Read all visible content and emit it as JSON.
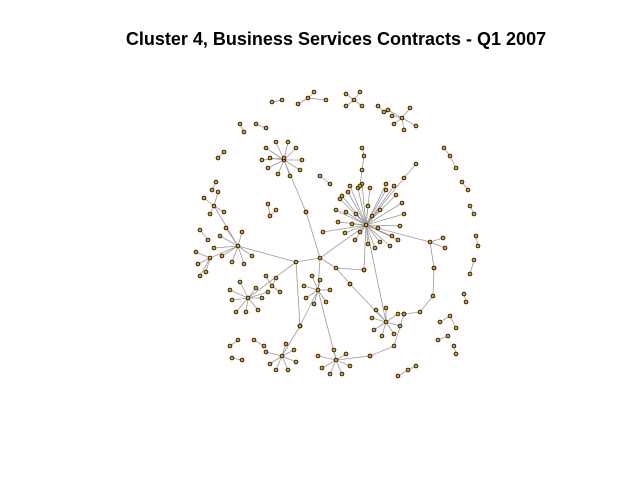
{
  "title": "Cluster 4, Business Services Contracts - Q1 2007",
  "colors": {
    "background": "#ffffff",
    "edge": "#9a9a9a",
    "node_fill": "#e6a214",
    "node_stroke": "#000000"
  }
}
